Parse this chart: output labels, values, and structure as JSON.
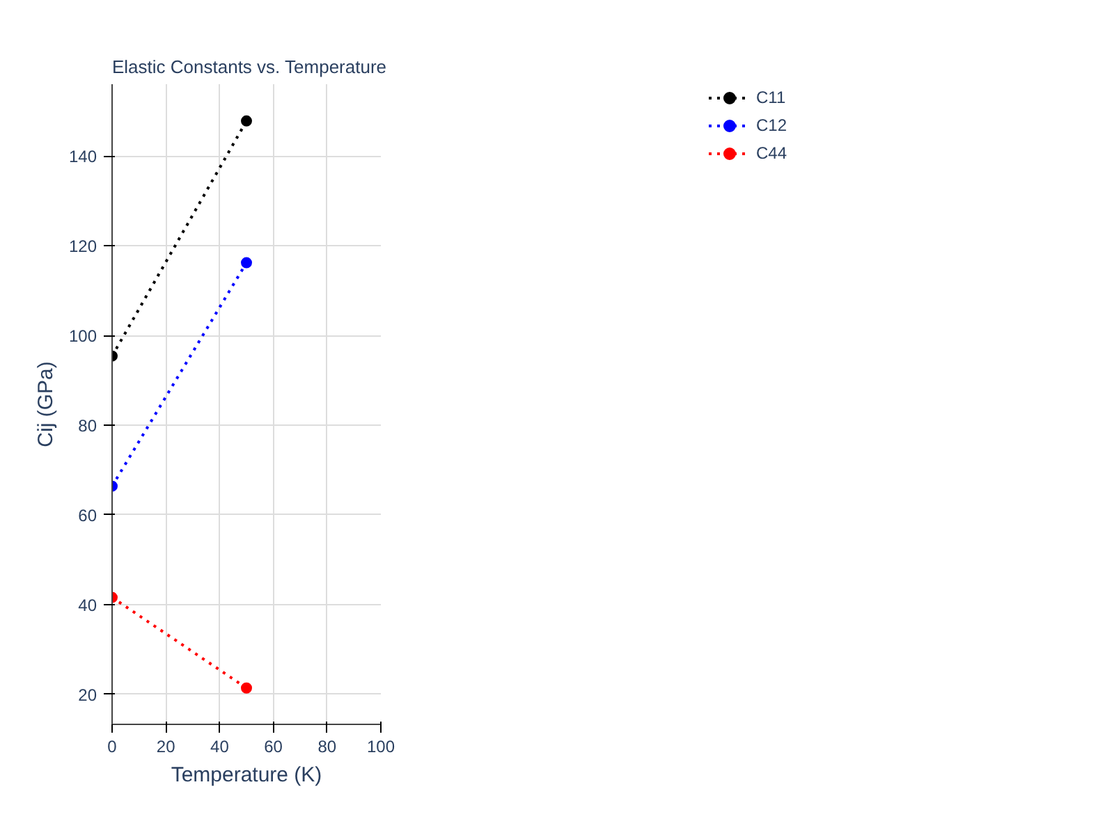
{
  "chart_data": {
    "type": "line",
    "title": "Elastic Constants vs. Temperature",
    "xlabel": "Temperature (K)",
    "ylabel": "Cij (GPa)",
    "x": [
      0,
      50
    ],
    "series": [
      {
        "name": "C11",
        "color": "#000000",
        "values": [
          95.4,
          147.8
        ]
      },
      {
        "name": "C12",
        "color": "#0000ff",
        "values": [
          66.4,
          116.2
        ]
      },
      {
        "name": "C44",
        "color": "#ff0000",
        "values": [
          41.6,
          21.4
        ]
      }
    ],
    "xlim": [
      0,
      100
    ],
    "xticks": [
      0,
      20,
      40,
      60,
      80,
      100
    ],
    "ylim": [
      13.3,
      156
    ],
    "yticks": [
      20,
      40,
      60,
      80,
      100,
      120,
      140
    ],
    "grid": true,
    "legend": "top right",
    "marker": "circle",
    "line_style": "dotted"
  }
}
